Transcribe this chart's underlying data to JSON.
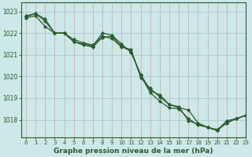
{
  "background_color": "#cce8e8",
  "grid_color": "#aacccc",
  "line_color": "#2d5a2d",
  "marker_color": "#2d5a2d",
  "title": "Graphe pression niveau de la mer (hPa)",
  "xlim": [
    -0.5,
    23
  ],
  "ylim": [
    1017.2,
    1023.4
  ],
  "yticks": [
    1018,
    1019,
    1020,
    1021,
    1022,
    1023
  ],
  "xticks": [
    0,
    1,
    2,
    3,
    4,
    5,
    6,
    7,
    8,
    9,
    10,
    11,
    12,
    13,
    14,
    15,
    16,
    17,
    18,
    19,
    20,
    21,
    22,
    23
  ],
  "series": [
    [
      1022.8,
      1022.9,
      1022.65,
      1022.0,
      1022.0,
      1021.7,
      1021.55,
      1021.45,
      1021.85,
      1021.75,
      1021.35,
      1021.25,
      1019.95,
      1019.45,
      1019.05,
      1018.7,
      1018.55,
      1018.45,
      1017.85,
      1017.65,
      1017.55,
      1017.85,
      1018.05,
      1018.2
    ],
    [
      1022.75,
      1022.9,
      1022.55,
      1022.0,
      1022.0,
      1021.6,
      1021.45,
      1021.35,
      1021.8,
      1021.85,
      1021.4,
      1021.15,
      1020.05,
      1019.25,
      1018.85,
      1018.55,
      1018.5,
      1018.05,
      1017.75,
      1017.65,
      1017.5,
      1017.85,
      1018.05,
      1018.2
    ],
    [
      1022.7,
      1022.8,
      1022.3,
      1022.0,
      1022.0,
      1021.6,
      1021.5,
      1021.4,
      1022.0,
      1021.9,
      1021.5,
      1021.1,
      1020.1,
      1019.35,
      1019.15,
      1018.7,
      1018.6,
      1017.95,
      1017.8,
      1017.65,
      1017.5,
      1017.95,
      1018.05,
      1018.2
    ]
  ]
}
